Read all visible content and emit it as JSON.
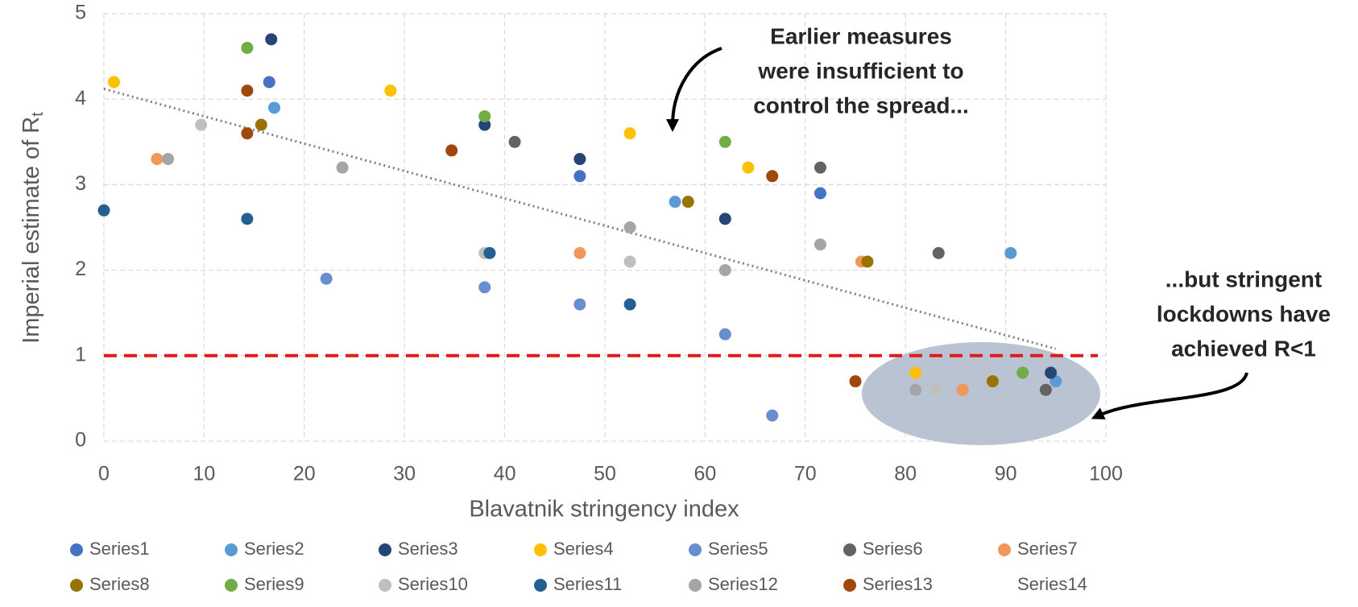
{
  "chart_data": {
    "type": "scatter",
    "x_label": "Blavatnik stringency index",
    "y_label": "Imperial estimate of R",
    "y_label_sub": "t",
    "xlim": [
      0,
      100
    ],
    "xticks": [
      0,
      10,
      20,
      30,
      40,
      50,
      60,
      70,
      80,
      90,
      100
    ],
    "ylim": [
      0,
      5
    ],
    "yticks": [
      0,
      1,
      2,
      3,
      4,
      5
    ],
    "grid": true,
    "legend": "bottom",
    "reference_line": {
      "value": 1,
      "color": "#e31a1c"
    },
    "trendline": {
      "x": [
        0,
        95
      ],
      "y": [
        4.12,
        1.08
      ],
      "color": "#7f7f7f"
    },
    "annotations": [
      {
        "lines": [
          "Earlier measures",
          "were insufficient to",
          "control the spread..."
        ]
      },
      {
        "lines": [
          "...but stringent",
          "lockdowns have",
          "achieved R<1"
        ]
      }
    ],
    "series": [
      {
        "name": "Series1",
        "color": "#4472c4",
        "x": [
          16.5,
          47.5,
          71.5
        ],
        "values": [
          4.2,
          3.1,
          2.9
        ]
      },
      {
        "name": "Series2",
        "color": "#5b9bd5",
        "x": [
          17,
          57,
          90.5,
          95
        ],
        "values": [
          3.9,
          2.8,
          2.2,
          0.7
        ]
      },
      {
        "name": "Series3",
        "color": "#264478",
        "x": [
          16.7,
          38,
          47.5,
          62,
          94.5
        ],
        "values": [
          4.7,
          3.7,
          3.3,
          2.6,
          0.8
        ]
      },
      {
        "name": "Series4",
        "color": "#ffc000",
        "x": [
          1,
          28.6,
          52.5,
          64.3,
          81
        ],
        "values": [
          4.2,
          4.1,
          3.6,
          3.2,
          0.8
        ]
      },
      {
        "name": "Series5",
        "color": "#698ed0",
        "x": [
          22.2,
          38,
          47.5,
          62,
          66.7
        ],
        "values": [
          1.9,
          1.8,
          1.6,
          1.25,
          0.3
        ]
      },
      {
        "name": "Series6",
        "color": "#636363",
        "x": [
          41,
          71.5,
          83.3,
          94
        ],
        "values": [
          3.5,
          3.2,
          2.2,
          0.6
        ]
      },
      {
        "name": "Series7",
        "color": "#f1975a",
        "x": [
          5.3,
          47.5,
          75.6,
          85.7
        ],
        "values": [
          3.3,
          2.2,
          2.1,
          0.6
        ]
      },
      {
        "name": "Series8",
        "color": "#997300",
        "x": [
          15.7,
          58.3,
          76.2,
          88.7
        ],
        "values": [
          3.7,
          2.8,
          2.1,
          0.7
        ]
      },
      {
        "name": "Series9",
        "color": "#70ad47",
        "x": [
          14.3,
          38,
          62,
          91.7
        ],
        "values": [
          4.6,
          3.8,
          3.5,
          0.8
        ]
      },
      {
        "name": "Series10",
        "color": "#bfbfbf",
        "x": [
          9.7,
          38,
          52.5,
          83
        ],
        "values": [
          3.7,
          2.2,
          2.1,
          0.6
        ]
      },
      {
        "name": "Series11",
        "color": "#255e91",
        "x": [
          0,
          14.3,
          38.5,
          52.5
        ],
        "values": [
          2.7,
          2.6,
          2.2,
          1.6
        ]
      },
      {
        "name": "Series12",
        "color": "#a5a5a5",
        "x": [
          6.4,
          23.8,
          52.5,
          62,
          71.5,
          81
        ],
        "values": [
          3.3,
          3.2,
          2.5,
          2.0,
          2.3,
          0.6
        ]
      },
      {
        "name": "Series13",
        "color": "#9e480e",
        "x": [
          14.3,
          14.3,
          34.7,
          66.7,
          75
        ],
        "values": [
          4.1,
          3.6,
          3.4,
          3.1,
          0.7
        ]
      },
      {
        "name": "Series14",
        "x": [],
        "values": []
      }
    ]
  }
}
